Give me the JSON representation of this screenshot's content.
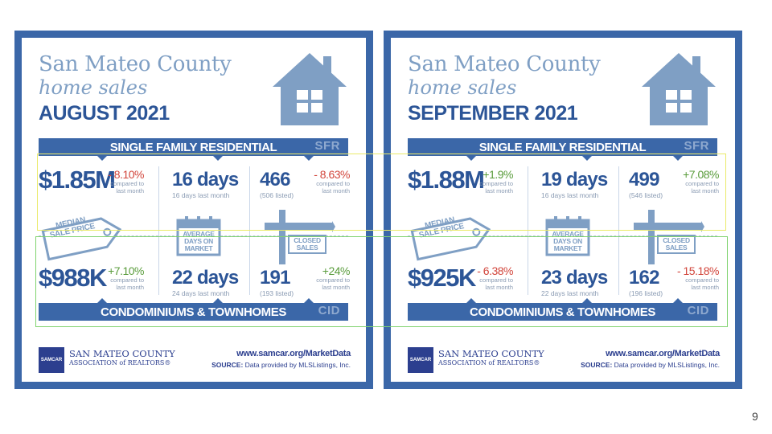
{
  "panels": [
    {
      "title_line1": "San Mateo County",
      "title_line2": "home sales",
      "month": "AUGUST 2021",
      "sfr_band": "SINGLE FAMILY RESIDENTIAL",
      "sfr_abbr": "SFR",
      "cid_band": "CONDOMINIUMS & TOWNHOMES",
      "cid_abbr": "CID",
      "sfr_price": "$1.85M",
      "sfr_price_change": "- 8.10%",
      "sfr_price_change_color": "red",
      "sfr_price_compare": "compared to last month",
      "sfr_days": "16 days",
      "sfr_days_sub": "16 days last month",
      "sfr_sales": "466",
      "sfr_sales_listed": "(506 listed)",
      "sfr_sales_change": "- 8.63%",
      "sfr_sales_change_color": "red",
      "sfr_sales_compare": "compared to last month",
      "label_median": "MEDIAN SALE PRICE",
      "label_dom": "AVERAGE DAYS ON MARKET",
      "label_closed": "CLOSED SALES",
      "cid_price": "$988K",
      "cid_price_change": "+7.10%",
      "cid_price_change_color": "green",
      "cid_price_compare": "compared to last month",
      "cid_days": "22 days",
      "cid_days_sub": "24 days last month",
      "cid_sales": "191",
      "cid_sales_listed": "(193 listed)",
      "cid_sales_change": "+24%",
      "cid_sales_change_color": "green",
      "cid_sales_compare": "compared to last month",
      "logo_text": "SAMCAR",
      "org_name": "SAN MATEO COUNTY",
      "org_assoc": "ASSOCIATION of REALTORS®",
      "url": "www.samcar.org/MarketData",
      "source_label": "SOURCE:",
      "source_text": "Data provided by MLSListings, Inc."
    },
    {
      "title_line1": "San Mateo County",
      "title_line2": "home sales",
      "month": "SEPTEMBER 2021",
      "sfr_band": "SINGLE FAMILY RESIDENTIAL",
      "sfr_abbr": "SFR",
      "cid_band": "CONDOMINIUMS & TOWNHOMES",
      "cid_abbr": "CID",
      "sfr_price": "$1.88M",
      "sfr_price_change": "+1.9%",
      "sfr_price_change_color": "green",
      "sfr_price_compare": "compared to last month",
      "sfr_days": "19 days",
      "sfr_days_sub": "16 days last month",
      "sfr_sales": "499",
      "sfr_sales_listed": "(546 listed)",
      "sfr_sales_change": "+7.08%",
      "sfr_sales_change_color": "green",
      "sfr_sales_compare": "compared to last month",
      "label_median": "MEDIAN SALE PRICE",
      "label_dom": "AVERAGE DAYS ON MARKET",
      "label_closed": "CLOSED SALES",
      "cid_price": "$925K",
      "cid_price_change": "- 6.38%",
      "cid_price_change_color": "red",
      "cid_price_compare": "compared to last month",
      "cid_days": "23 days",
      "cid_days_sub": "22 days last month",
      "cid_sales": "162",
      "cid_sales_listed": "(196 listed)",
      "cid_sales_change": "- 15.18%",
      "cid_sales_change_color": "red",
      "cid_sales_compare": "compared to last month",
      "logo_text": "SAMCAR",
      "org_name": "SAN MATEO COUNTY",
      "org_assoc": "ASSOCIATION of REALTORS®",
      "url": "www.samcar.org/MarketData",
      "source_label": "SOURCE:",
      "source_text": "Data provided by MLSListings, Inc."
    }
  ],
  "colors": {
    "brand_blue": "#3b67a8",
    "navy": "#2c5597",
    "light_blue": "#7f9fc4",
    "red": "#d2463c",
    "green": "#5a9c3c"
  },
  "page_number": "9"
}
